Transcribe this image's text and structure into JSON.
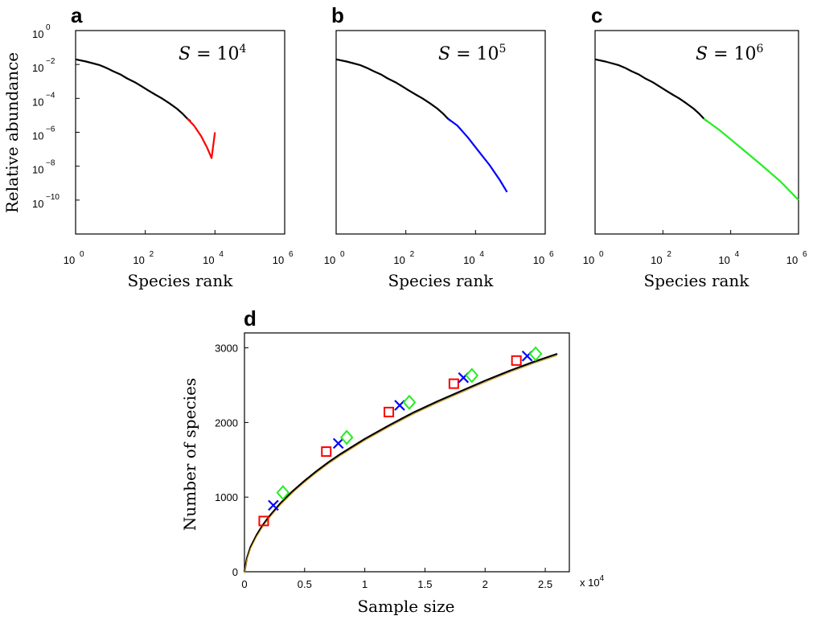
{
  "chart_data": [
    {
      "panel": "a",
      "type": "line",
      "xscale": "log",
      "yscale": "log",
      "xlim": [
        1,
        1000000
      ],
      "ylim": [
        1e-12,
        1
      ],
      "x_ticks": [
        {
          "base": "10",
          "exp": "0"
        },
        {
          "base": "10",
          "exp": "2"
        },
        {
          "base": "10",
          "exp": "4"
        },
        {
          "base": "10",
          "exp": "6"
        }
      ],
      "y_ticks": [
        {
          "base": "10",
          "exp": "0"
        },
        {
          "base": "10",
          "exp": "−2"
        },
        {
          "base": "10",
          "exp": "−4"
        },
        {
          "base": "10",
          "exp": "−6"
        },
        {
          "base": "10",
          "exp": "−8"
        },
        {
          "base": "10",
          "exp": "−10"
        }
      ],
      "xlabel": "Species rank",
      "ylabel": "Relative abundance",
      "annotation": {
        "lhs": "S",
        "eq": " = 10",
        "sup": "4",
        "color": "#ff0000"
      },
      "series": [
        {
          "color": "#000000",
          "x": [
            1,
            2,
            3,
            5,
            8,
            12,
            20,
            30,
            50,
            80,
            120,
            200,
            300,
            500,
            800,
            1200,
            1600,
            2000
          ],
          "y": [
            0.02,
            0.015,
            0.012,
            0.009,
            0.006,
            0.004,
            0.0025,
            0.0015,
            0.0009,
            0.0005,
            0.0003,
            0.00016,
            0.0001,
            5e-05,
            2.5e-05,
            1.2e-05,
            6.5e-06,
            4.5e-06
          ]
        },
        {
          "color": "#ff0000",
          "x": [
            1600,
            2500,
            4000,
            6000,
            8000,
            10000
          ],
          "y": [
            6.5e-06,
            2.5e-06,
            6e-07,
            1.2e-07,
            3e-08,
            1e-06
          ]
        }
      ]
    },
    {
      "panel": "b",
      "type": "line",
      "xscale": "log",
      "yscale": "log",
      "xlim": [
        1,
        1000000
      ],
      "ylim": [
        1e-12,
        1
      ],
      "x_ticks": [
        {
          "base": "10",
          "exp": "0"
        },
        {
          "base": "10",
          "exp": "2"
        },
        {
          "base": "10",
          "exp": "4"
        },
        {
          "base": "10",
          "exp": "6"
        }
      ],
      "y_ticks": [],
      "xlabel": "Species rank",
      "ylabel": "",
      "annotation": {
        "lhs": "S",
        "eq": " = 10",
        "sup": "5",
        "color": "#0000ff"
      },
      "series": [
        {
          "color": "#000000",
          "x": [
            1,
            2,
            3,
            5,
            8,
            12,
            20,
            30,
            50,
            80,
            120,
            200,
            300,
            500,
            800,
            1200,
            1600,
            2000
          ],
          "y": [
            0.02,
            0.015,
            0.012,
            0.009,
            0.006,
            0.004,
            0.0025,
            0.0015,
            0.0009,
            0.0005,
            0.0003,
            0.00016,
            0.0001,
            5e-05,
            2.5e-05,
            1.2e-05,
            6.5e-06,
            4.5e-06
          ]
        },
        {
          "color": "#0000ff",
          "x": [
            1600,
            3000,
            6000,
            12000,
            25000,
            50000,
            80000
          ],
          "y": [
            6.5e-06,
            2.5e-06,
            5e-07,
            8e-08,
            1.2e-08,
            1.5e-09,
            3e-10
          ]
        }
      ]
    },
    {
      "panel": "c",
      "type": "line",
      "xscale": "log",
      "yscale": "log",
      "xlim": [
        1,
        1000000
      ],
      "ylim": [
        1e-12,
        1
      ],
      "x_ticks": [
        {
          "base": "10",
          "exp": "0"
        },
        {
          "base": "10",
          "exp": "2"
        },
        {
          "base": "10",
          "exp": "4"
        },
        {
          "base": "10",
          "exp": "6"
        }
      ],
      "y_ticks": [],
      "xlabel": "Species rank",
      "ylabel": "",
      "annotation": {
        "lhs": "S",
        "eq": " = 10",
        "sup": "6",
        "color": "#22ee22"
      },
      "series": [
        {
          "color": "#000000",
          "x": [
            1,
            2,
            3,
            5,
            8,
            12,
            20,
            30,
            50,
            80,
            120,
            200,
            300,
            500,
            800,
            1200,
            1600,
            2000
          ],
          "y": [
            0.02,
            0.015,
            0.012,
            0.009,
            0.006,
            0.004,
            0.0025,
            0.0015,
            0.0009,
            0.0005,
            0.0003,
            0.00016,
            0.0001,
            5e-05,
            2.5e-05,
            1.2e-05,
            6.5e-06,
            4.5e-06
          ]
        },
        {
          "color": "#22ee22",
          "x": [
            1600,
            5000,
            20000,
            80000,
            300000,
            1000000
          ],
          "y": [
            6.5e-06,
            1.2e-06,
            1.2e-07,
            1.2e-08,
            1.2e-09,
            1e-10
          ]
        }
      ]
    },
    {
      "panel": "d",
      "type": "line",
      "xlim": [
        0,
        27000
      ],
      "ylim": [
        0,
        3200
      ],
      "x_ticks": [
        "0",
        "0.5",
        "1",
        "1.5",
        "2",
        "2.5"
      ],
      "x_tick_values": [
        0,
        5000,
        10000,
        15000,
        20000,
        25000
      ],
      "x_multiplier": {
        "base": "x 10",
        "exp": "4"
      },
      "y_ticks": [
        "0",
        "1000",
        "2000",
        "3000"
      ],
      "y_tick_values": [
        0,
        1000,
        2000,
        3000
      ],
      "xlabel": "Sample size",
      "ylabel": "Number of species",
      "series": [
        {
          "color": "#000000",
          "x": [
            0,
            200,
            500,
            1000,
            1500,
            2000,
            3000,
            4000,
            5000,
            6000,
            7000,
            8000,
            10000,
            12000,
            14000,
            16000,
            18000,
            20000,
            22000,
            24000,
            26000
          ],
          "y": [
            0,
            180,
            330,
            490,
            620,
            730,
            920,
            1080,
            1220,
            1350,
            1470,
            1580,
            1780,
            1960,
            2130,
            2280,
            2420,
            2560,
            2690,
            2810,
            2920
          ]
        },
        {
          "name": "S = 10^4",
          "color": "#ff0000",
          "marker": "square",
          "x": [
            1600,
            6800,
            12000,
            17400,
            22600
          ],
          "y": [
            680,
            1610,
            2140,
            2520,
            2830
          ]
        },
        {
          "name": "S = 10^5",
          "color": "#0000ff",
          "marker": "x",
          "x": [
            2400,
            7800,
            12900,
            18200,
            23500
          ],
          "y": [
            890,
            1720,
            2230,
            2600,
            2890
          ]
        },
        {
          "name": "S = 10^6",
          "color": "#22ee22",
          "marker": "diamond",
          "x": [
            3200,
            8500,
            13700,
            18900,
            24200
          ],
          "y": [
            1060,
            1800,
            2270,
            2630,
            2920
          ]
        }
      ]
    }
  ]
}
